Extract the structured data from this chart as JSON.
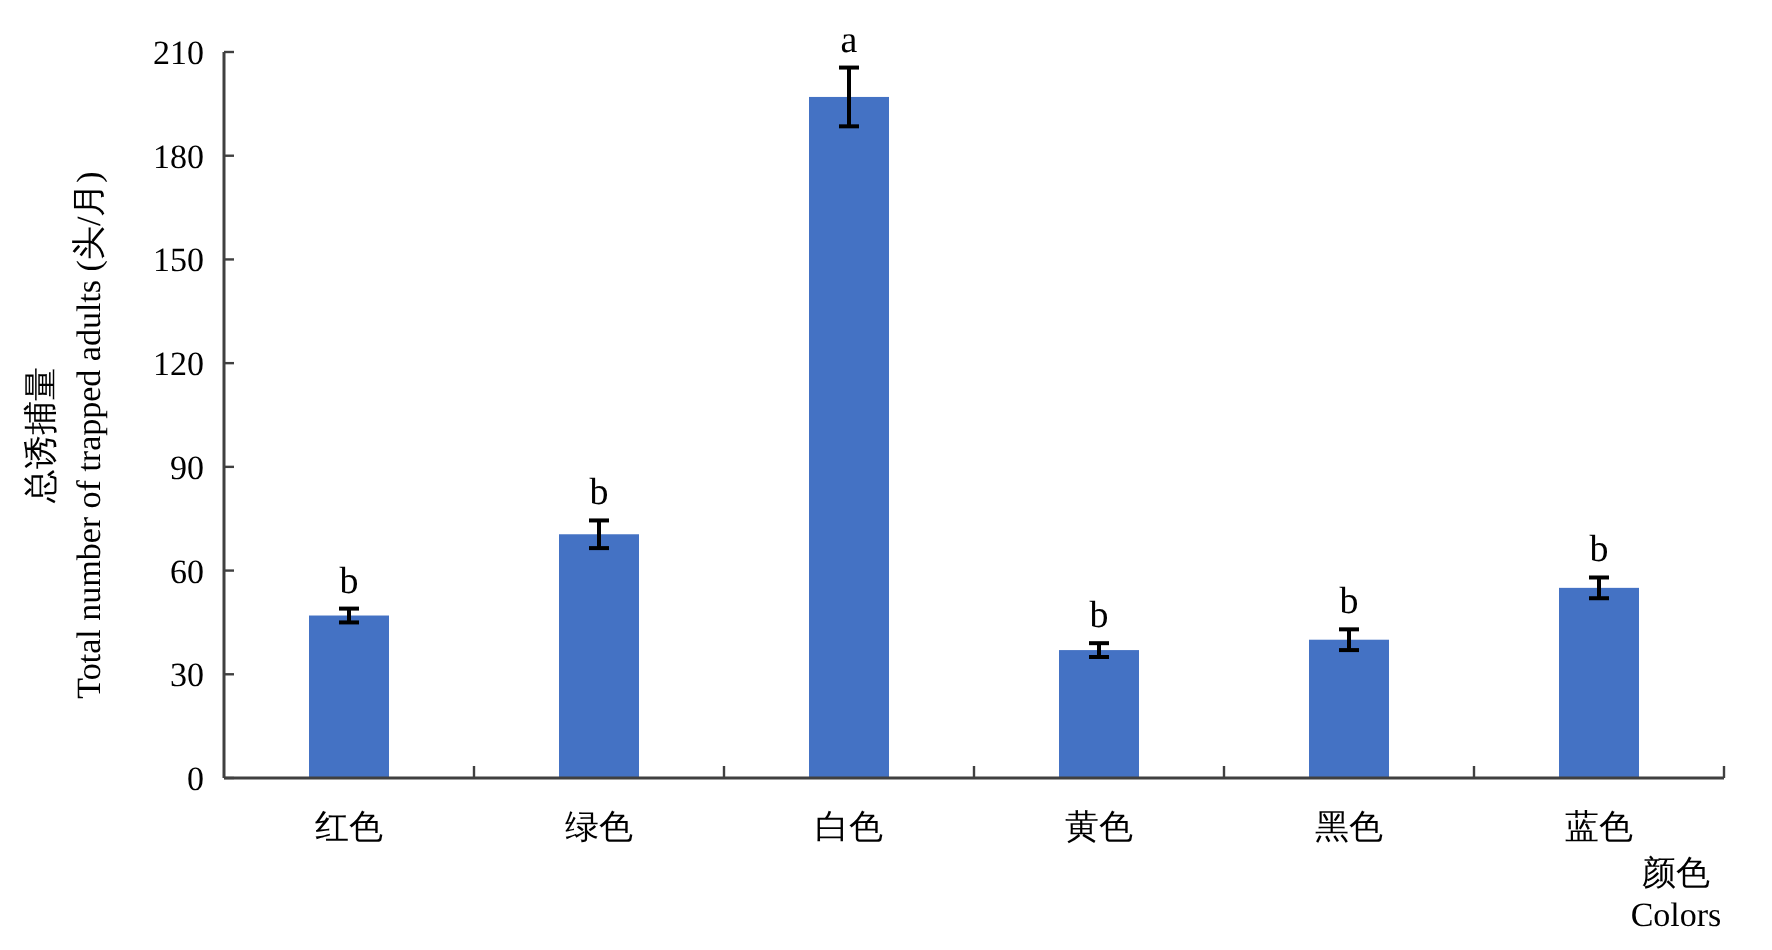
{
  "chart_data": {
    "type": "bar",
    "categories": [
      "红色",
      "绿色",
      "白色",
      "黄色",
      "黑色",
      "蓝色"
    ],
    "values": [
      47,
      70.5,
      197,
      37,
      40,
      55
    ],
    "errors": [
      2,
      4,
      8.5,
      2,
      3,
      3
    ],
    "color": "#4472c4",
    "ylabel": "总诱捕量\nTotal number of trapped adults (头/月)",
    "xlabel": "颜色\nColors",
    "ylim": [
      0,
      210
    ],
    "yticks": [
      0,
      30,
      60,
      90,
      120,
      150,
      180,
      210
    ],
    "grid": false,
    "annotations": [
      {
        "text": "b",
        "x": "红色",
        "y": 49
      },
      {
        "text": "b",
        "x": "绿色",
        "y": 74.5
      },
      {
        "text": "a",
        "x": "白色",
        "y": 205.5
      },
      {
        "text": "b",
        "x": "黄色",
        "y": 39
      },
      {
        "text": "b",
        "x": "黑色",
        "y": 43
      },
      {
        "text": "b",
        "x": "蓝色",
        "y": 58
      }
    ]
  }
}
